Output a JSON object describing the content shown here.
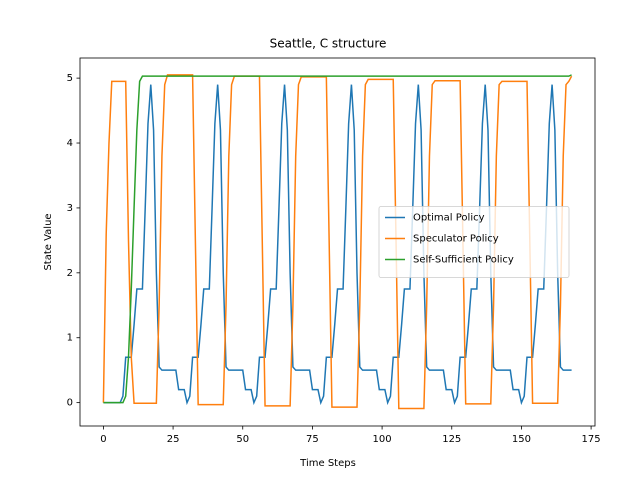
{
  "chart_data": {
    "type": "line",
    "title": "Seattle, C structure",
    "x_label": "Time Steps",
    "y_label": "State Value",
    "xlim": [
      -8.4,
      176.4
    ],
    "xticks": [
      0,
      25,
      50,
      75,
      100,
      125,
      150,
      175
    ],
    "ylim": [
      -0.36,
      5.31
    ],
    "yticks": [
      0,
      1,
      2,
      3,
      4,
      5
    ],
    "legend": "center right",
    "series": [
      {
        "name": "Optimal Policy",
        "color": "#1f77b4",
        "x": [
          0,
          6,
          7,
          8,
          10,
          11,
          12,
          14,
          15,
          16,
          17,
          18,
          19,
          20,
          21,
          26,
          27,
          29,
          30,
          31,
          32,
          34,
          35,
          36,
          38,
          39,
          40,
          41,
          42,
          43,
          44,
          45,
          50,
          51,
          53,
          54,
          55,
          56,
          58,
          59,
          60,
          62,
          63,
          64,
          65,
          66,
          67,
          68,
          69,
          74,
          75,
          77,
          78,
          79,
          80,
          82,
          83,
          84,
          86,
          87,
          88,
          89,
          90,
          91,
          92,
          93,
          98,
          99,
          101,
          102,
          103,
          104,
          106,
          107,
          108,
          110,
          111,
          112,
          113,
          114,
          115,
          116,
          117,
          122,
          123,
          125,
          126,
          127,
          128,
          130,
          131,
          132,
          134,
          135,
          136,
          137,
          138,
          139,
          140,
          141,
          146,
          147,
          149,
          150,
          151,
          152,
          154,
          155,
          156,
          158,
          159,
          160,
          161,
          162,
          163,
          164,
          165,
          168
        ],
        "values": [
          0,
          0,
          0.1,
          0.7,
          0.7,
          1.2,
          1.75,
          1.75,
          3.0,
          4.3,
          4.9,
          4.2,
          2.0,
          0.55,
          0.5,
          0.5,
          0.2,
          0.2,
          0,
          0.1,
          0.7,
          0.7,
          1.2,
          1.75,
          1.75,
          3.0,
          4.3,
          4.9,
          4.2,
          2.0,
          0.55,
          0.5,
          0.5,
          0.2,
          0.2,
          0,
          0.1,
          0.7,
          0.7,
          1.2,
          1.75,
          1.75,
          3.0,
          4.3,
          4.9,
          4.2,
          2.0,
          0.55,
          0.5,
          0.5,
          0.2,
          0.2,
          0,
          0.1,
          0.7,
          0.7,
          1.2,
          1.75,
          1.75,
          3.0,
          4.3,
          4.9,
          4.2,
          2.0,
          0.55,
          0.5,
          0.5,
          0.2,
          0.2,
          0,
          0.1,
          0.7,
          0.7,
          1.2,
          1.75,
          1.75,
          3.0,
          4.3,
          4.9,
          4.2,
          2.0,
          0.55,
          0.5,
          0.5,
          0.2,
          0.2,
          0,
          0.1,
          0.7,
          0.7,
          1.2,
          1.75,
          1.75,
          3.0,
          4.3,
          4.9,
          4.2,
          2.0,
          0.55,
          0.5,
          0.5,
          0.2,
          0.2,
          0,
          0.1,
          0.7,
          0.7,
          1.2,
          1.75,
          1.75,
          3.0,
          4.3,
          4.9,
          4.2,
          2.0,
          0.55,
          0.5,
          0.5
        ]
      },
      {
        "name": "Speculator Policy",
        "color": "#ff7f0e",
        "x": [
          0,
          1,
          2,
          3,
          8,
          9,
          10,
          11,
          19,
          20,
          21,
          22,
          23,
          32,
          33,
          34,
          43,
          44,
          45,
          46,
          47,
          56,
          57,
          58,
          67,
          68,
          69,
          70,
          71,
          80,
          81,
          82,
          91,
          92,
          93,
          94,
          95,
          104,
          105,
          106,
          115,
          116,
          117,
          118,
          119,
          128,
          129,
          130,
          139,
          140,
          141,
          142,
          143,
          152,
          153,
          154,
          163,
          164,
          165,
          166,
          167,
          168
        ],
        "values": [
          0,
          2.6,
          4.0,
          4.95,
          4.95,
          2.5,
          0.7,
          -0.01,
          -0.01,
          1.5,
          3.8,
          4.9,
          5.05,
          5.05,
          2.5,
          -0.03,
          -0.03,
          1.5,
          3.8,
          4.9,
          5.03,
          5.03,
          2.5,
          -0.05,
          -0.05,
          1.5,
          3.8,
          4.9,
          5.02,
          5.02,
          2.5,
          -0.07,
          -0.07,
          1.5,
          3.8,
          4.9,
          4.98,
          4.98,
          2.5,
          -0.09,
          -0.09,
          1.5,
          3.8,
          4.9,
          4.96,
          4.96,
          2.5,
          -0.02,
          -0.02,
          1.5,
          3.8,
          4.9,
          4.95,
          4.95,
          2.5,
          -0.01,
          -0.01,
          1.5,
          3.8,
          4.9,
          4.95,
          5.03
        ]
      },
      {
        "name": "Self-Sufficient Policy",
        "color": "#2ca02c",
        "x": [
          0,
          7,
          8,
          9,
          10,
          11,
          12,
          13,
          14,
          167,
          168
        ],
        "values": [
          0,
          0,
          0.1,
          0.7,
          1.75,
          3.0,
          4.2,
          4.95,
          5.03,
          5.03,
          5.05
        ]
      }
    ]
  }
}
